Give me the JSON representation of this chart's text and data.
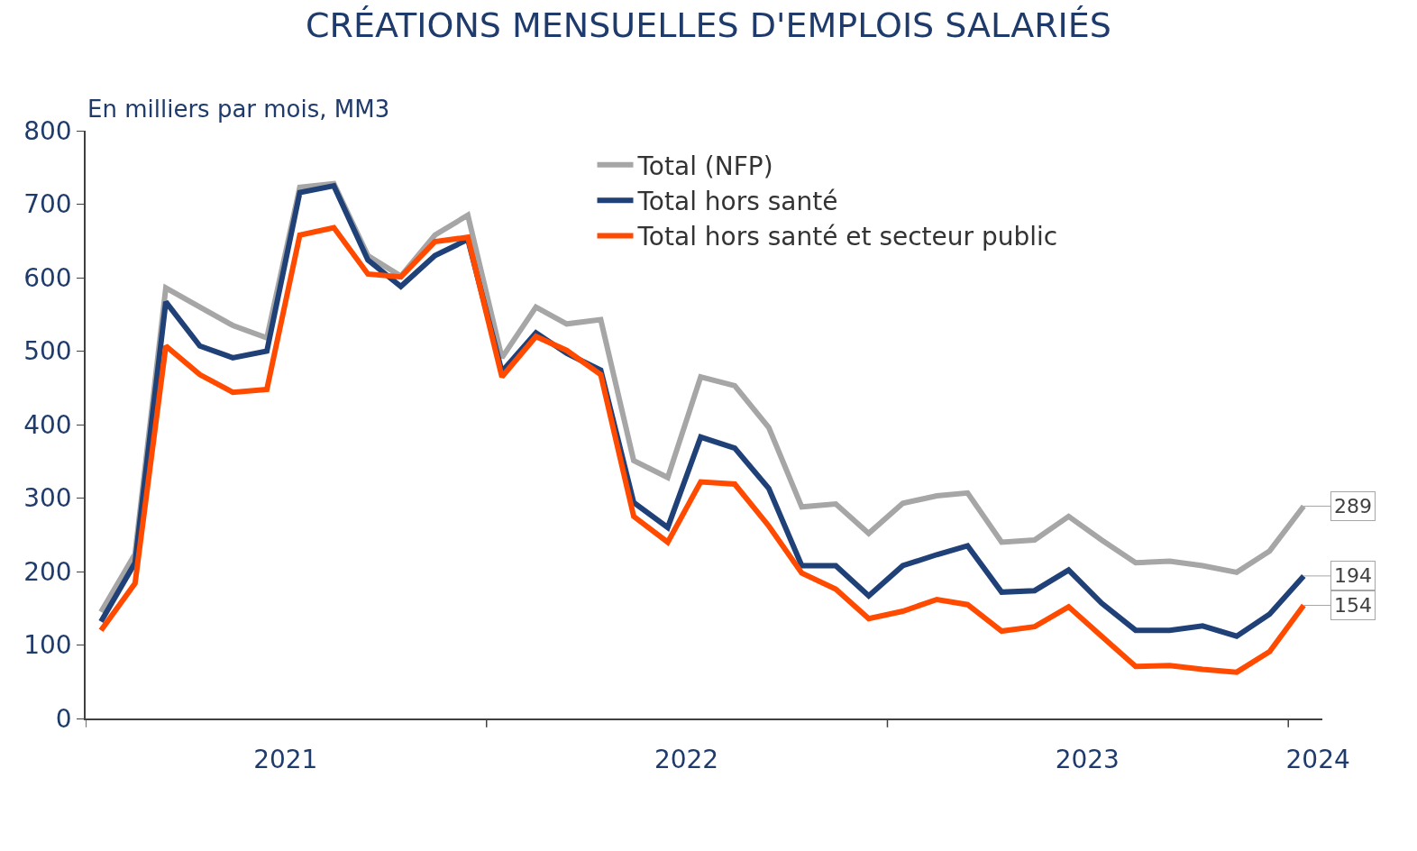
{
  "chart_data": {
    "type": "line",
    "title": "CRÉATIONS MENSUELLES D'EMPLOIS SALARIÉS",
    "subtitle": "En milliers par mois, MM3",
    "x": [
      "2021-01-15",
      "2021-02-15",
      "2021-03-15",
      "2021-04-15",
      "2021-05-15",
      "2021-06-15",
      "2021-07-15",
      "2021-08-15",
      "2021-09-15",
      "2021-10-15",
      "2021-11-15",
      "2021-12-15",
      "2022-01-15",
      "2022-02-15",
      "2022-03-15",
      "2022-04-15",
      "2022-05-15",
      "2022-06-15",
      "2022-07-15",
      "2022-08-15",
      "2022-09-15",
      "2022-10-15",
      "2022-11-15",
      "2022-12-15",
      "2023-01-15",
      "2023-02-15",
      "2023-03-15",
      "2023-04-15",
      "2023-05-15",
      "2023-06-15",
      "2023-07-15",
      "2023-08-15",
      "2023-09-15",
      "2023-10-15",
      "2023-11-15",
      "2023-12-15",
      "2024-01-15"
    ],
    "series": [
      {
        "name": "Total (NFP)",
        "color": "#a6a6a6",
        "values": [
          145,
          224,
          586,
          560,
          535,
          518,
          723,
          728,
          630,
          602,
          658,
          685,
          491,
          560,
          537,
          543,
          351,
          328,
          465,
          453,
          396,
          288,
          292,
          252,
          293,
          303,
          307,
          240,
          243,
          275,
          243,
          212,
          214,
          208,
          199,
          228,
          289
        ],
        "value_labels": [
          null,
          null,
          null,
          null,
          null,
          null,
          null,
          null,
          null,
          null,
          null,
          null,
          null,
          null,
          null,
          null,
          null,
          null,
          null,
          null,
          null,
          null,
          null,
          null,
          null,
          null,
          null,
          null,
          null,
          null,
          null,
          null,
          null,
          null,
          null,
          null,
          "289"
        ]
      },
      {
        "name": "Total hors santé",
        "color": "#1f4178",
        "values": [
          132,
          212,
          567,
          507,
          491,
          500,
          716,
          725,
          624,
          588,
          630,
          652,
          472,
          525,
          497,
          474,
          294,
          260,
          383,
          368,
          313,
          208,
          208,
          167,
          208,
          223,
          235,
          172,
          174,
          202,
          157,
          120,
          120,
          126,
          112,
          142,
          194
        ],
        "value_labels": [
          null,
          null,
          null,
          null,
          null,
          null,
          null,
          null,
          null,
          null,
          null,
          null,
          null,
          null,
          null,
          null,
          null,
          null,
          null,
          null,
          null,
          null,
          null,
          null,
          null,
          null,
          null,
          null,
          null,
          null,
          null,
          null,
          null,
          null,
          null,
          null,
          "194"
        ]
      },
      {
        "name": "Total hors santé et secteur public",
        "color": "#ff4a00",
        "values": [
          120,
          184,
          507,
          468,
          444,
          448,
          658,
          668,
          605,
          601,
          649,
          655,
          465,
          520,
          501,
          468,
          275,
          240,
          322,
          319,
          262,
          198,
          176,
          136,
          146,
          162,
          155,
          119,
          125,
          152,
          112,
          71,
          72,
          67,
          63,
          91,
          154
        ],
        "value_labels": [
          null,
          null,
          null,
          null,
          null,
          null,
          null,
          null,
          null,
          null,
          null,
          null,
          null,
          null,
          null,
          null,
          null,
          null,
          null,
          null,
          null,
          null,
          null,
          null,
          null,
          null,
          null,
          null,
          null,
          null,
          null,
          null,
          null,
          null,
          null,
          null,
          "154"
        ]
      }
    ],
    "xlim": [
      "2021-01-01",
      "2024-02-01"
    ],
    "xticks": [
      {
        "value": "2021-01-01",
        "label": null
      },
      {
        "value": "2021-07-02",
        "label": "2021"
      },
      {
        "value": "2022-01-01",
        "label": null
      },
      {
        "value": "2022-07-02",
        "label": "2022"
      },
      {
        "value": "2023-01-01",
        "label": null
      },
      {
        "value": "2023-07-02",
        "label": "2023"
      },
      {
        "value": "2024-01-01",
        "label": null
      },
      {
        "value": "2024-01-28",
        "label": "2024"
      }
    ],
    "ylim": [
      0,
      800
    ],
    "yticks": [
      0,
      100,
      200,
      300,
      400,
      500,
      600,
      700,
      800
    ],
    "legend": "top",
    "marker": "none",
    "line_style": "solid"
  }
}
